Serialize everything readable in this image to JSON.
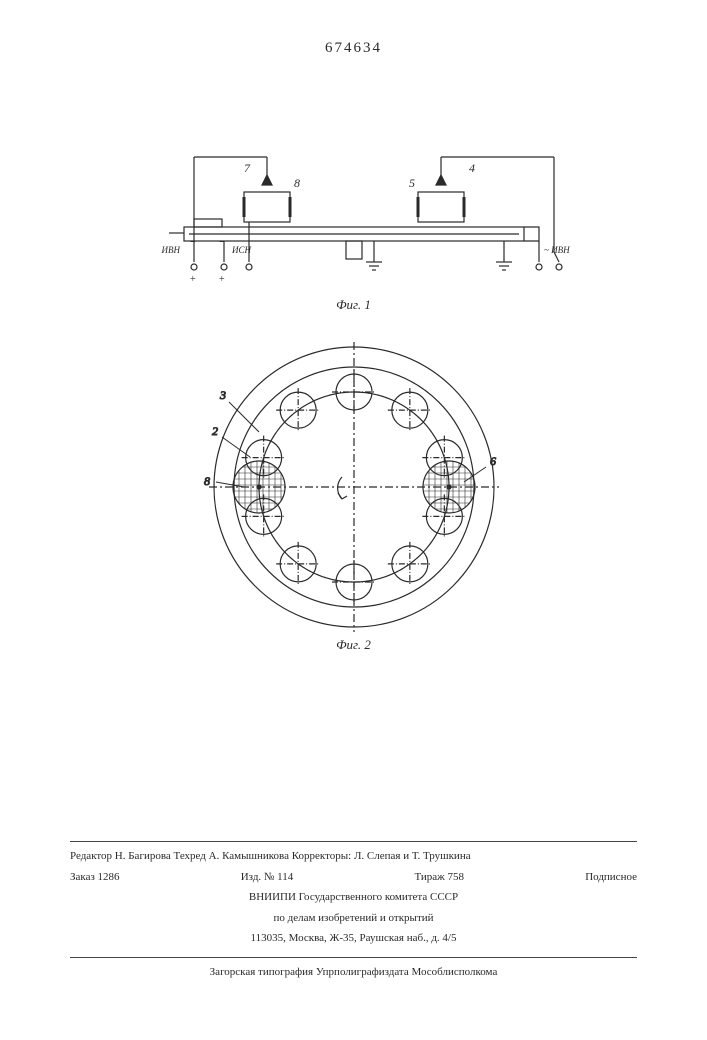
{
  "patent_number": "674634",
  "fig1": {
    "label": "Фиг. 1",
    "ref_labels": [
      "7",
      "8",
      "5",
      "4"
    ],
    "terminal_labels": [
      "ИВН",
      "ИСН",
      "~ ИВН"
    ],
    "stroke": "#2a2a2a",
    "fill_none": "none"
  },
  "fig2": {
    "label": "Фиг. 2",
    "ref_labels": [
      "3",
      "2",
      "8",
      "6"
    ],
    "ring_circles_count": 10,
    "outer_radius": 140,
    "body_radius": 120,
    "ring_radius": 95,
    "small_circle_radius": 18,
    "hatched_circle_radius": 26,
    "stroke": "#2a2a2a"
  },
  "footer": {
    "editor_line": "Редактор Н. Багирова  Техред А. Камышникова  Корректоры: Л. Слепая и Т. Трушкина",
    "order": "Заказ 1286",
    "izd": "Изд. № 114",
    "tirazh": "Тираж 758",
    "podpisnoe": "Подписное",
    "org1": "ВНИИПИ Государственного комитета СССР",
    "org2": "по делам изобретений и открытий",
    "address": "113035, Москва, Ж-35, Раушская наб., д. 4/5",
    "printer": "Загорская типография Упрполиграфиздата Мособлисполкома"
  }
}
